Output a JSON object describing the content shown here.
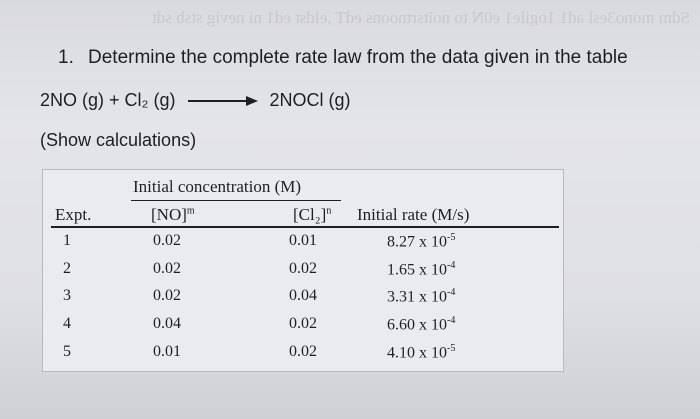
{
  "bleed_text": "Sdm mono3esl ad1 1ogile1 e0N to noitsrtnoons edT ,eldst ed1 ni nevig stsb sdt mori wsl stsr 9jslqmo",
  "question": {
    "number": "1.",
    "text": "Determine the complete rate law from the data given in the table"
  },
  "equation": {
    "reactants": "2NO (g) + Cl₂ (g)",
    "products": "2NOCl (g)"
  },
  "instruction": "(Show calculations)",
  "table": {
    "group_header": "Initial concentration (M)",
    "headers": {
      "expt": "Expt.",
      "no": "[NO]",
      "no_exp": "m",
      "cl2": "[Cl₂]",
      "cl2_exp": "n",
      "rate": "Initial rate (M/s)"
    },
    "rows": [
      {
        "expt": "1",
        "no": "0.02",
        "cl2": "0.01",
        "rate_mant": "8.27 x 10",
        "rate_exp": "-5"
      },
      {
        "expt": "2",
        "no": "0.02",
        "cl2": "0.02",
        "rate_mant": "1.65 x 10",
        "rate_exp": "-4"
      },
      {
        "expt": "3",
        "no": "0.02",
        "cl2": "0.04",
        "rate_mant": "3.31 x 10",
        "rate_exp": "-4"
      },
      {
        "expt": "4",
        "no": "0.04",
        "cl2": "0.02",
        "rate_mant": "6.60 x 10",
        "rate_exp": "-4"
      },
      {
        "expt": "5",
        "no": "0.01",
        "cl2": "0.02",
        "rate_mant": "4.10 x 10",
        "rate_exp": "-5"
      }
    ]
  }
}
